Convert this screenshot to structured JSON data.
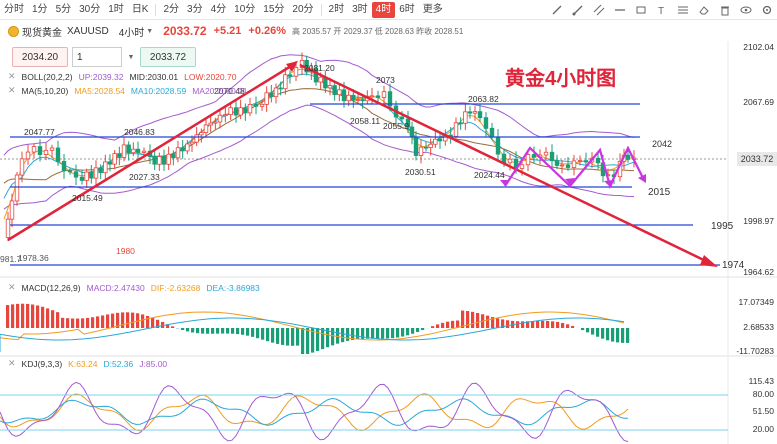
{
  "timeframes": [
    "分时",
    "1分",
    "5分",
    "30分",
    "1时",
    "日K",
    "2分",
    "3分",
    "4分",
    "10分",
    "15分",
    "20分",
    "2时",
    "3时",
    "4时",
    "6时",
    "更多"
  ],
  "active_timeframe": "4时",
  "quote": {
    "name": "现货黄金",
    "symbol": "XAUUSD",
    "period": "4小时",
    "price": "2033.72",
    "change": "+5.21",
    "change_pct": "+0.26%",
    "ohlc_text": "高 2035.57  开 2029.37  低 2028.63  昨收 2028.51"
  },
  "order": {
    "sell_price": "2034.20",
    "quantity": "1",
    "buy_price": "2033.72"
  },
  "legends": {
    "boll": {
      "label": "BOLL(20,2,2)",
      "up": "UP:2039.32",
      "mid": "MID:2030.01",
      "low": "LOW:2020.70"
    },
    "ma": {
      "label": "MA(5,10,20)",
      "ma5": "MA5:2028.54",
      "ma10": "MA10:2028.59",
      "ma20": "MA20:2030.01"
    },
    "macd": {
      "label": "MACD(12,26,9)",
      "macd": "MACD:2.47430",
      "dif": "DIF:-2.63268",
      "dea": "DEA:-3.86983"
    },
    "kdj": {
      "label": "KDJ(9,3,3)",
      "k": "K:63.24",
      "d": "D:52.36",
      "j": "J:85.00"
    }
  },
  "annotation_title": "黄金4小时图",
  "price_axis": {
    "p2102": "2102.04",
    "p2067": "2067.69",
    "p1998": "1998.97",
    "p1964": "1964.62",
    "current": "2033.72"
  },
  "macd_axis": {
    "top": "17.07349",
    "mid": "2.68533",
    "bottom": "-11.70283"
  },
  "kdj_axis": {
    "top": "115.43",
    "upper": "80.00",
    "mid": "51.50",
    "lower": "20.00"
  },
  "chart_labels": {
    "l2047": "2047.77",
    "l2046": "2046.83",
    "l2015": "2015.49",
    "l2027": "2027.33",
    "l2070": "2070.48",
    "l2080": "2081.20",
    "l2073": "2073",
    "l2063": "2063.82",
    "l2058": "2058.11",
    "l2055": "2055.9",
    "l2030": "2030.51",
    "l2024": "2024.44",
    "l2042": "2042",
    "l2015b": "2015",
    "l1995": "1995",
    "l1974": "1974",
    "l1980": "1980",
    "l1978": "1978.36",
    "l1981": "981.7"
  },
  "colors": {
    "up": "#e8453c",
    "down": "#1a9e78",
    "accent": "#e8453c",
    "trend": "#e0243a",
    "zigzag": "#c935e0",
    "boll": "#a35bd0",
    "support": "#2546d8"
  }
}
